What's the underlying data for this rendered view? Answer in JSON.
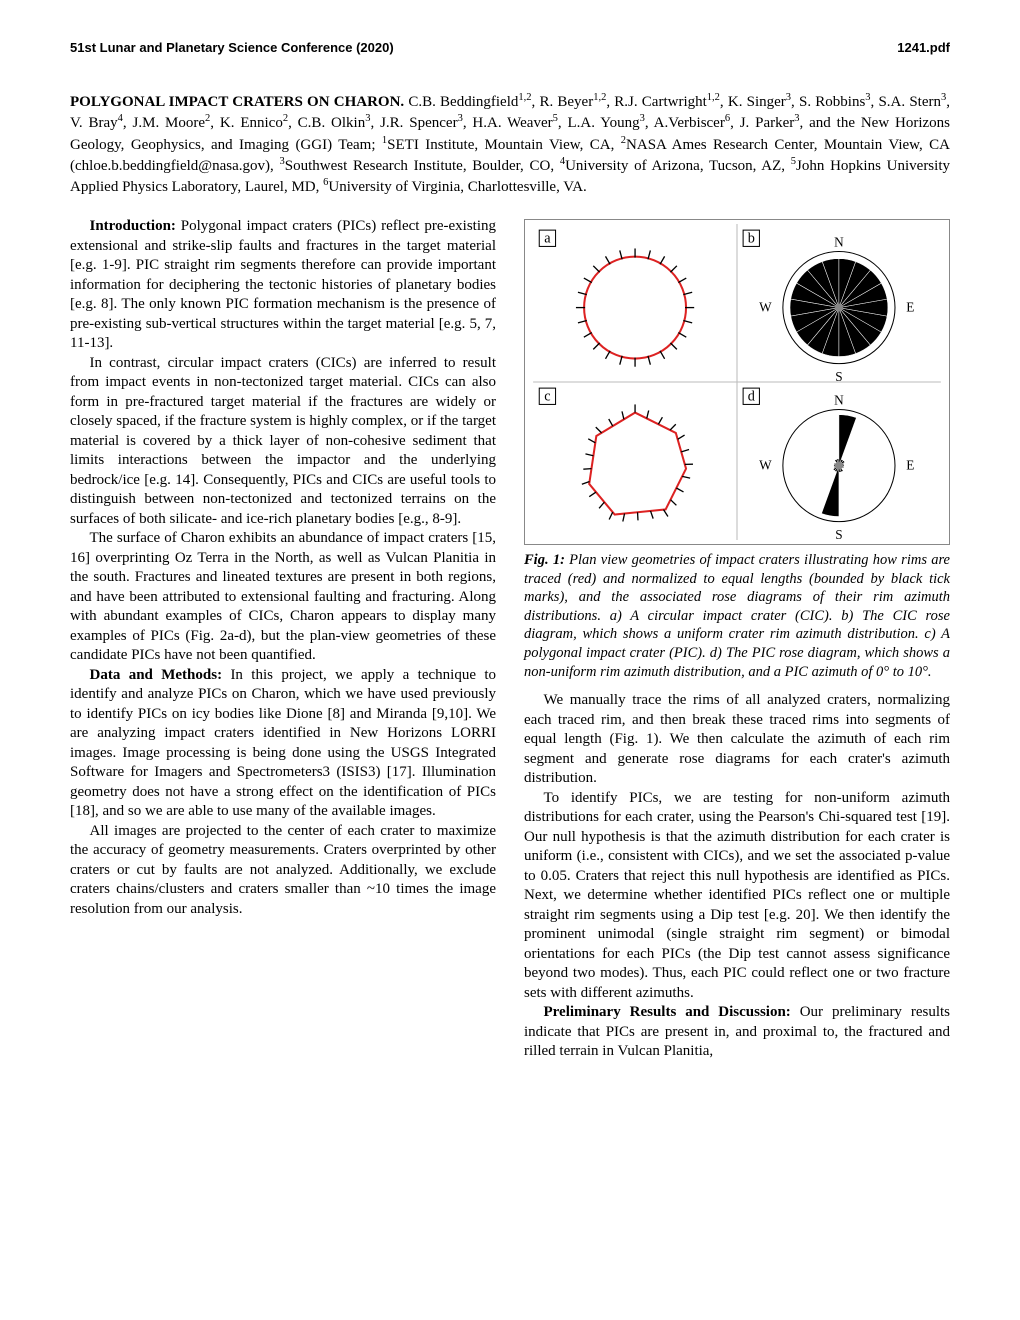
{
  "header": {
    "left": "51st Lunar and Planetary Science Conference (2020)",
    "right": "1241.pdf"
  },
  "title": {
    "bold": "POLYGONAL IMPACT CRATERS ON CHARON.",
    "authors": " C.B. Beddingfield",
    "aff1": "1,2",
    "a2": ", R. Beyer",
    "aff2": "1,2",
    "a3": ", R.J. Cartwright",
    "aff3": "1,2",
    "a4": ", K. Singer",
    "aff4": "3",
    "a5": ", S. Robbins",
    "aff5": "3",
    "a6": ", S.A. Stern",
    "aff6": "3",
    "a7": ", V. Bray",
    "aff7": "4",
    "a8": ", J.M. Moore",
    "aff8": "2",
    "a9": ", K. Ennico",
    "aff9": "2",
    "a10": ", C.B. Olkin",
    "aff10": "3",
    "a11": ", J.R. Spencer",
    "aff11": "3",
    "a12": ", H.A. Weaver",
    "aff12": "5",
    "a13": ", L.A. Young",
    "aff13": "3",
    "a14": ", A.Verbiscer",
    "aff14": "6",
    "a15": ", J. Parker",
    "aff15": "3",
    "tail": ", and the New Horizons Geology, Geophysics, and Imaging (GGI) Team; ",
    "inst1sup": "1",
    "inst1": "SETI Institute, Mountain View, CA, ",
    "inst2sup": "2",
    "inst2": "NASA Ames Research Center, Mountain View, CA (chloe.b.beddingfield@nasa.gov), ",
    "inst3sup": "3",
    "inst3": "Southwest Research Institute, Boulder, CO, ",
    "inst4sup": "4",
    "inst4": "University of Arizona, Tucson, AZ, ",
    "inst5sup": "5",
    "inst5": "John Hopkins University Applied Physics Laboratory, Laurel, MD, ",
    "inst6sup": "6",
    "inst6": "University of Virginia, Charlottesville, VA."
  },
  "left_col": {
    "intro_head": "Introduction:",
    "intro_p1": " Polygonal impact craters (PICs) reflect pre-existing extensional and strike-slip faults and fractures in the target material [e.g. 1-9]. PIC straight rim segments therefore can provide important information for deciphering the tectonic histories of planetary bodies [e.g. 8]. The only known PIC formation mechanism is the presence of pre-existing sub-vertical structures within the target material [e.g. 5, 7, 11-13].",
    "intro_p2": "In contrast, circular impact craters (CICs) are inferred to result from impact events in non-tectonized target material. CICs can also form in pre-fractured target material if the fractures are widely or closely spaced, if the fracture system is highly complex, or if the target material is covered by a thick layer of non-cohesive sediment that limits interactions between the impactor and the underlying bedrock/ice [e.g. 14]. Consequently, PICs and CICs are useful tools to distinguish between non-tectonized and tectonized terrains on the surfaces of both silicate- and ice-rich planetary bodies [e.g., 8-9].",
    "intro_p3": "The surface of Charon exhibits an abundance of impact craters [15, 16] overprinting Oz Terra in the North, as well as Vulcan Planitia in the south. Fractures and lineated textures are present in both regions, and have been attributed to extensional faulting and fracturing. Along with abundant examples of CICs, Charon appears to display many examples of PICs (Fig. 2a-d), but the plan-view geometries of these candidate PICs have not been quantified.",
    "data_head": "Data and Methods:",
    "data_p1": " In this project, we apply a technique to identify and analyze PICs on Charon, which we have used previously to identify PICs on icy bodies like Dione [8] and Miranda [9,10]. We are analyzing impact craters identified in New Horizons LORRI images. Image processing is being done using the USGS Integrated Software for Imagers and Spectrometers3 (ISIS3) [17]. Illumination geometry does not have a strong effect on the identification of PICs [18], and so we are able to use many of the available images.",
    "data_p2": "All images are projected to the center of each crater to maximize the accuracy of geometry measurements. Craters overprinted by other craters or cut by faults are not analyzed. Additionally, we exclude craters chains/clusters and craters smaller than ~10 times the image resolution from our analysis."
  },
  "right_col": {
    "fig_label": "Fig. 1:",
    "fig_caption": " Plan view geometries of impact craters illustrating how rims are traced (red) and normalized to equal lengths (bounded by black tick marks), and the associated rose diagrams of their rim azimuth distributions. a) A circular impact crater (CIC). b) The CIC rose diagram, which shows a uniform crater rim azimuth distribution. c) A polygonal impact crater (PIC). d) The PIC rose diagram, which shows a non-uniform rim azimuth distribution, and a PIC azimuth of 0° to 10°.",
    "p1": "We manually trace the rims of all analyzed craters, normalizing each traced rim, and then break these traced rims into segments of equal length (Fig. 1). We then calculate the azimuth of each rim segment and generate rose diagrams for each crater's azimuth distribution.",
    "p2": "To identify PICs, we are testing for non-uniform azimuth distributions for each crater, using the Pearson's Chi-squared test [19]. Our null hypothesis is that the azimuth distribution for each crater is uniform (i.e., consistent with CICs), and we set the associated p-value to 0.05. Craters that reject this null hypothesis are identified as PICs. Next, we determine whether identified PICs reflect one or multiple straight rim segments using a Dip test [e.g. 20]. We then identify the prominent unimodal (single straight rim segment) or bimodal orientations for each PICs (the Dip test cannot assess significance beyond two modes). Thus, each PIC could reflect one or two fracture sets with different azimuths.",
    "results_head": "Preliminary Results and Discussion:",
    "p3": " Our preliminary results indicate that PICs are present in, and proximal to, the fractured and rilled terrain in Vulcan Planitia,"
  },
  "figure": {
    "panel_labels": [
      "a",
      "b",
      "c",
      "d"
    ],
    "compass": [
      "N",
      "E",
      "S",
      "W"
    ],
    "trace_color": "#d22",
    "tick_color": "#000",
    "rose_fill": "#000",
    "rose_center_fill": "#888",
    "box_border": "#888",
    "inner_border": "#777",
    "cic_rose_values": [
      8,
      8,
      8,
      8,
      8,
      8,
      8,
      8,
      8,
      8,
      8,
      8,
      8,
      8,
      8,
      8,
      8,
      8
    ],
    "pic_rose_values": [
      30,
      4,
      4,
      3,
      3,
      3,
      2,
      4,
      4,
      30,
      4,
      4,
      3,
      3,
      3,
      2,
      4,
      4
    ]
  }
}
